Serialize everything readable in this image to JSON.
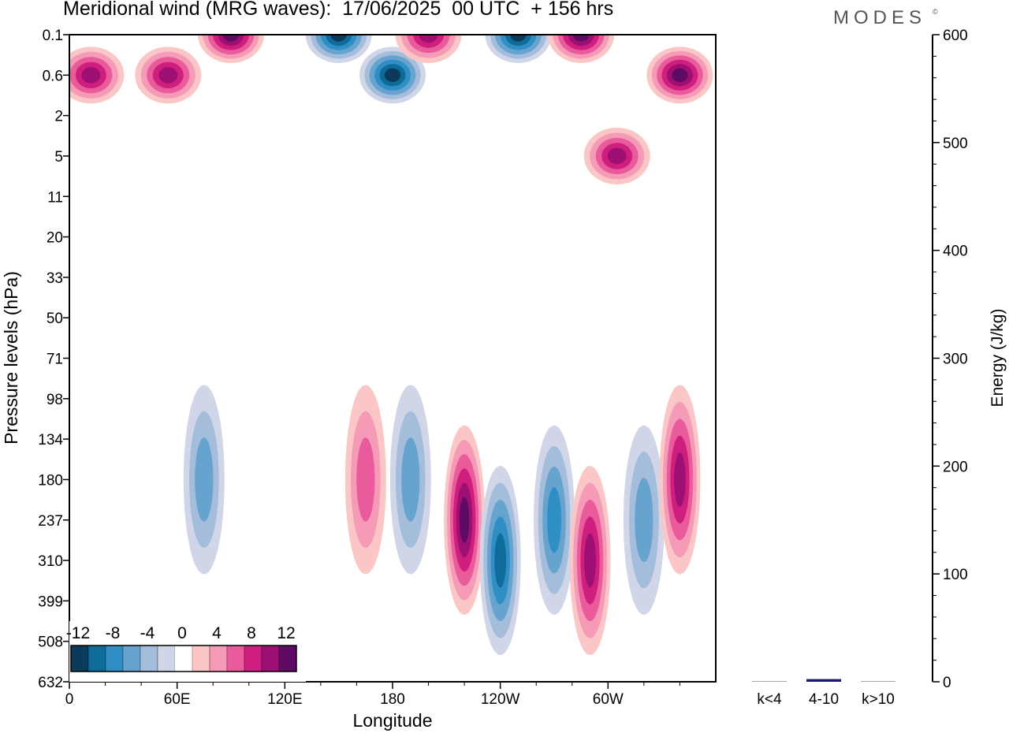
{
  "header": {
    "title": "Meridional wind (MRG waves):  17/06/2025  00 UTC  + 156 hrs",
    "brand": "MODES",
    "brand_mark": "©"
  },
  "colors": {
    "scale": [
      "#0b3a5a",
      "#0f6b9a",
      "#2f8fc4",
      "#66a3cf",
      "#a3bddb",
      "#d0d6e8",
      "#ffffff",
      "#fbc6c6",
      "#f59bb8",
      "#ea5b9c",
      "#cf1f7e",
      "#9e0f73",
      "#5f0a63"
    ],
    "bar": "#1a1a6e"
  },
  "chart_data": [
    {
      "type": "heatmap",
      "title": "Meridional wind (MRG waves):  17/06/2025  00 UTC  + 156 hrs",
      "xlabel": "Longitude",
      "ylabel": "Pressure levels (hPa)",
      "x_ticks": [
        "0",
        "60E",
        "120E",
        "180",
        "120W",
        "60W"
      ],
      "x_tick_values": [
        0,
        60,
        120,
        180,
        240,
        300
      ],
      "xlim": [
        0,
        360
      ],
      "y_ticks": [
        "0.1",
        "0.6",
        "2",
        "5",
        "11",
        "20",
        "33",
        "50",
        "71",
        "98",
        "134",
        "180",
        "237",
        "310",
        "399",
        "508",
        "632"
      ],
      "colorbar": {
        "labels": [
          "-12",
          "-8",
          "-4",
          "0",
          "4",
          "8",
          "12"
        ],
        "levels": [
          -12,
          -10,
          -8,
          -6,
          -4,
          -2,
          0,
          2,
          4,
          6,
          8,
          10,
          12
        ]
      },
      "features": [
        {
          "lon": 12,
          "level": "0.6",
          "value": 10
        },
        {
          "lon": 55,
          "level": "0.6",
          "value": 10
        },
        {
          "lon": 90,
          "level": "0.1",
          "value": 12
        },
        {
          "lon": 150,
          "level": "0.1",
          "value": -12
        },
        {
          "lon": 180,
          "level": "0.6",
          "value": -12
        },
        {
          "lon": 200,
          "level": "0.1",
          "value": 10
        },
        {
          "lon": 250,
          "level": "0.1",
          "value": -12
        },
        {
          "lon": 285,
          "level": "0.1",
          "value": 12
        },
        {
          "lon": 340,
          "level": "0.6",
          "value": 12
        },
        {
          "lon": 305,
          "level": "5",
          "value": 10
        },
        {
          "lon": 75,
          "level": "180",
          "value": -6
        },
        {
          "lon": 165,
          "level": "180",
          "value": 6
        },
        {
          "lon": 190,
          "level": "180",
          "value": -6
        },
        {
          "lon": 220,
          "level": "237",
          "value": 12
        },
        {
          "lon": 240,
          "level": "310",
          "value": -10
        },
        {
          "lon": 270,
          "level": "237",
          "value": -8
        },
        {
          "lon": 290,
          "level": "310",
          "value": 10
        },
        {
          "lon": 320,
          "level": "237",
          "value": -6
        },
        {
          "lon": 340,
          "level": "180",
          "value": 10
        }
      ]
    },
    {
      "type": "bar",
      "ylabel": "Energy (J/kg)",
      "categories": [
        "k<4",
        "4-10",
        "k>10"
      ],
      "values": [
        0.3,
        2.5,
        0.3
      ],
      "ylim": [
        0,
        600
      ],
      "y_ticks": [
        "0",
        "100",
        "200",
        "300",
        "400",
        "500",
        "600"
      ]
    }
  ]
}
